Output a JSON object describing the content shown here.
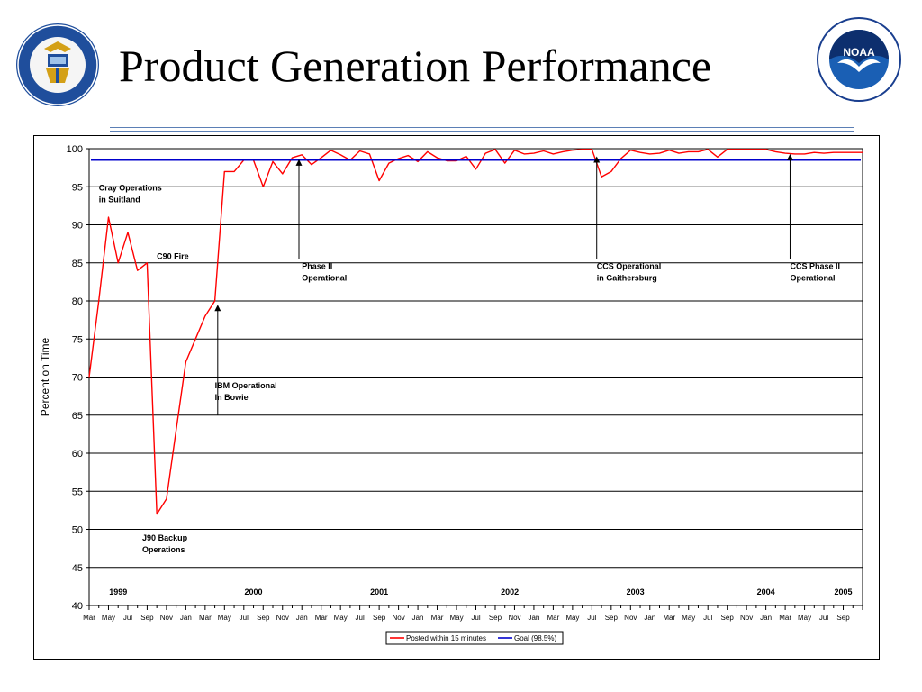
{
  "slide": {
    "title": "Product Generation Performance",
    "left_logo_text": "DEPARTMENT OF COMMERCE · UNITED STATES OF AMERICA",
    "right_logo_text": "NATIONAL OCEANIC AND ATMOSPHERIC ADMINISTRATION · U.S. DEPARTMENT OF COMMERCE",
    "right_logo_word": "NOAA"
  },
  "chart_data": {
    "type": "line",
    "title": "",
    "xlabel": "",
    "ylabel": "Percent on Time",
    "ylim": [
      40,
      100
    ],
    "yticks": [
      40,
      45,
      50,
      55,
      60,
      65,
      70,
      75,
      80,
      85,
      90,
      95,
      100
    ],
    "grid": true,
    "legend_position": "bottom",
    "x_tick_labels": [
      "Mar",
      "May",
      "Jul",
      "Sep",
      "Nov",
      "Jan",
      "Mar",
      "May",
      "Jul",
      "Sep",
      "Nov",
      "Jan",
      "Mar",
      "May",
      "Jul",
      "Sep",
      "Nov",
      "Jan",
      "Mar",
      "May",
      "Jul",
      "Sep",
      "Nov",
      "Jan",
      "Mar",
      "May",
      "Jul",
      "Sep",
      "Nov",
      "Jan",
      "Mar",
      "May",
      "Jul",
      "Sep",
      "Nov",
      "Jan",
      "Mar",
      "May",
      "Jul",
      "Sep"
    ],
    "year_labels": [
      {
        "label": "1999",
        "month_index": 3
      },
      {
        "label": "2000",
        "month_index": 17
      },
      {
        "label": "2001",
        "month_index": 30
      },
      {
        "label": "2002",
        "month_index": 43.5
      },
      {
        "label": "2003",
        "month_index": 56.5
      },
      {
        "label": "2004",
        "month_index": 70
      },
      {
        "label": "2005",
        "month_index": 78
      }
    ],
    "series": [
      {
        "name": "Posted within 15 minutes",
        "color": "#ff0000",
        "x_start": "1999-03",
        "values": [
          70,
          80,
          91,
          85,
          89,
          84,
          85,
          52,
          54,
          63,
          72,
          75,
          78,
          80,
          97,
          97,
          98.5,
          98.5,
          95,
          98.3,
          96.7,
          98.8,
          99.2,
          97.9,
          98.8,
          99.8,
          99.2,
          98.5,
          99.7,
          99.3,
          95.8,
          98.1,
          98.7,
          99.1,
          98.3,
          99.6,
          98.8,
          98.4,
          98.4,
          99,
          97.3,
          99.4,
          99.9,
          98.1,
          99.8,
          99.3,
          99.4,
          99.7,
          99.3,
          99.6,
          99.8,
          99.9,
          99.9,
          96.3,
          97.0,
          98.7,
          99.8,
          99.5,
          99.3,
          99.4,
          99.8,
          99.4,
          99.6,
          99.6,
          99.9,
          98.9,
          99.9,
          99.9,
          99.9,
          99.9,
          99.9,
          99.6,
          99.4,
          99.3,
          99.3,
          99.5,
          99.4,
          99.5,
          99.5,
          99.5,
          99.5
        ]
      },
      {
        "name": "Goal (98.5%)",
        "color": "#0000cc",
        "constant": 98.5
      }
    ],
    "annotations": [
      {
        "lines": [
          "Cray Operations",
          "in Suitland"
        ],
        "month_index": 1,
        "value": 94.5,
        "arrow": null
      },
      {
        "lines": [
          "C90 Fire"
        ],
        "month_index": 7,
        "value": 85.5,
        "arrow": null
      },
      {
        "lines": [
          "J90 Backup",
          "Operations"
        ],
        "month_index": 5.5,
        "value": 48.5,
        "arrow": null
      },
      {
        "lines": [
          "IBM Operational",
          "In Bowie"
        ],
        "month_index": 13,
        "value": 68.5,
        "arrow": {
          "month_index": 13.3,
          "from": 65,
          "to": 79.5
        }
      },
      {
        "lines": [
          "Phase II",
          "Operational"
        ],
        "month_index": 22,
        "value": 84.2,
        "arrow": {
          "month_index": 21.7,
          "from": 85.5,
          "to": 98.6
        }
      },
      {
        "lines": [
          "CCS Operational",
          "in Gaithersburg"
        ],
        "month_index": 52.5,
        "value": 84.2,
        "arrow": {
          "month_index": 52.5,
          "from": 85.5,
          "to": 99
        }
      },
      {
        "lines": [
          "CCS Phase II",
          "Operational"
        ],
        "month_index": 72.5,
        "value": 84.2,
        "arrow": {
          "month_index": 72.5,
          "from": 85.5,
          "to": 99.3
        }
      }
    ]
  }
}
